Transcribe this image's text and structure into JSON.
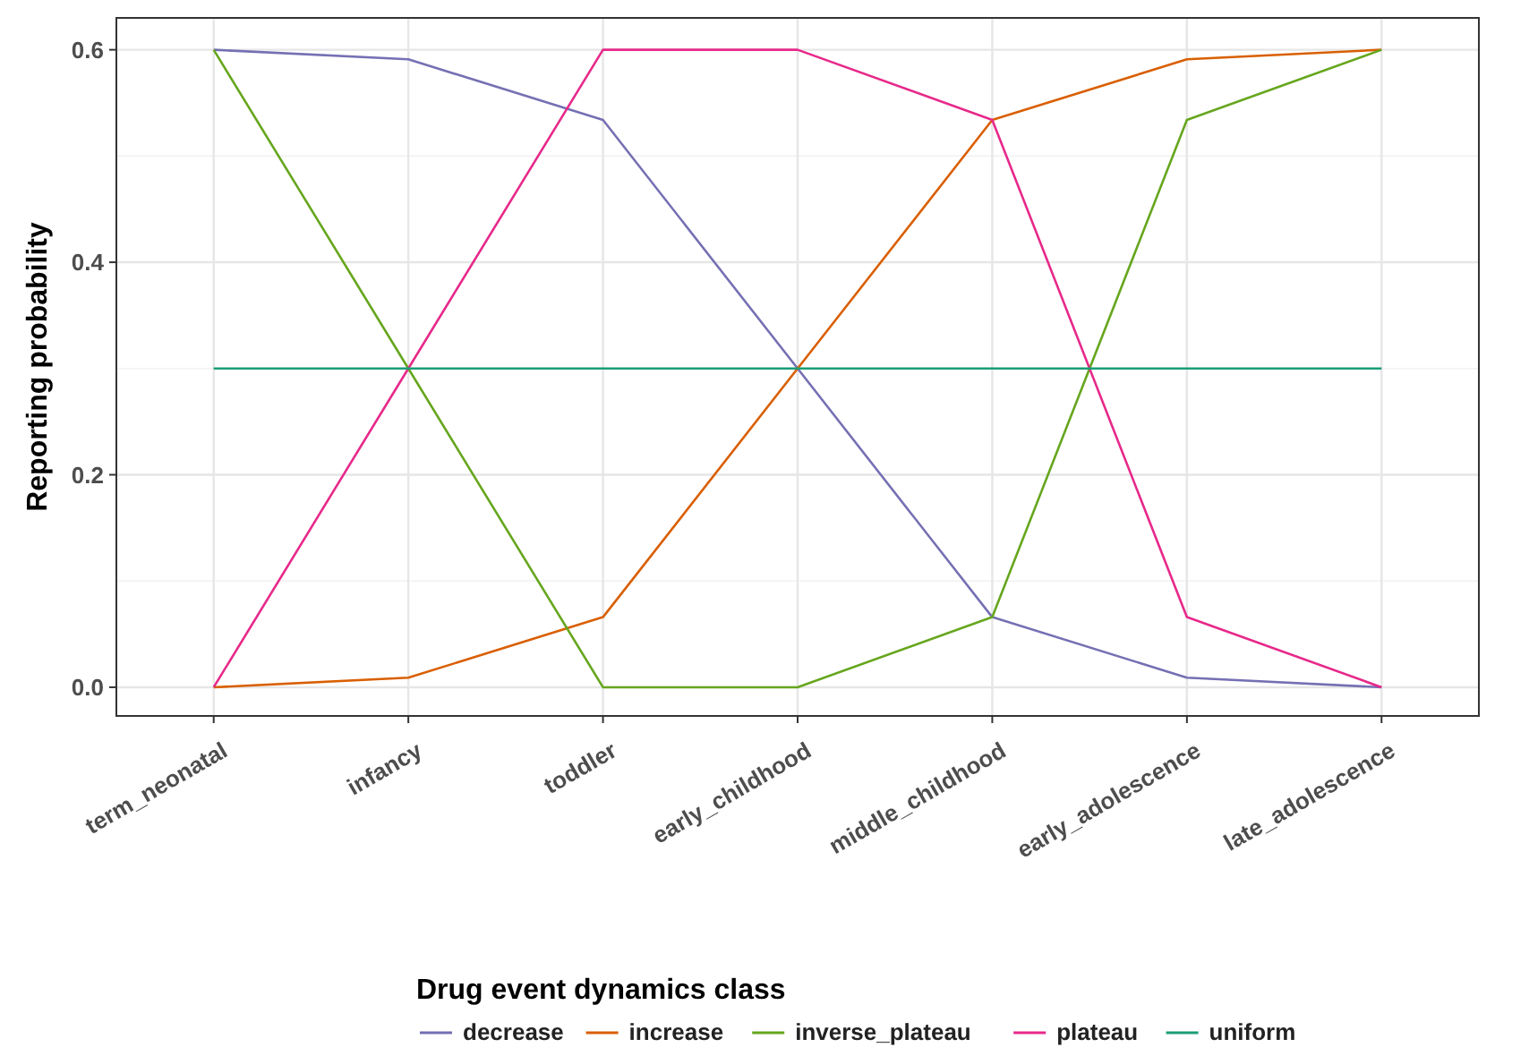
{
  "chart_data": {
    "type": "line",
    "xlabel": null,
    "ylabel": "Reporting probability",
    "legend_title": "Drug event dynamics class",
    "categories": [
      "term_neonatal",
      "infancy",
      "toddler",
      "early_childhood",
      "middle_childhood",
      "early_adolescence",
      "late_adolescence"
    ],
    "series": [
      {
        "name": "decrease",
        "color": "#7570b3",
        "values": [
          0.6,
          0.591,
          0.534,
          0.3,
          0.066,
          0.009,
          0.0
        ]
      },
      {
        "name": "increase",
        "color": "#d95f02",
        "values": [
          0.0,
          0.009,
          0.066,
          0.3,
          0.534,
          0.591,
          0.6
        ]
      },
      {
        "name": "inverse_plateau",
        "color": "#66a61e",
        "values": [
          0.6,
          0.3,
          0.0,
          0.0,
          0.066,
          0.534,
          0.6
        ]
      },
      {
        "name": "plateau",
        "color": "#e7298a",
        "values": [
          0.0,
          0.3,
          0.6,
          0.6,
          0.534,
          0.066,
          0.0
        ]
      },
      {
        "name": "uniform",
        "color": "#1b9e77",
        "values": [
          0.3,
          0.3,
          0.3,
          0.3,
          0.3,
          0.3,
          0.3
        ]
      }
    ],
    "ylim": [
      -0.027,
      0.63
    ],
    "yticks": [
      {
        "value": 0,
        "label": "0.0"
      },
      {
        "value": 0.2,
        "label": "0.2"
      },
      {
        "value": 0.4,
        "label": "0.4"
      },
      {
        "value": 0.6,
        "label": "0.6"
      }
    ],
    "grid": true,
    "legend": "bottom",
    "marker": "none",
    "line_style": "solid"
  }
}
